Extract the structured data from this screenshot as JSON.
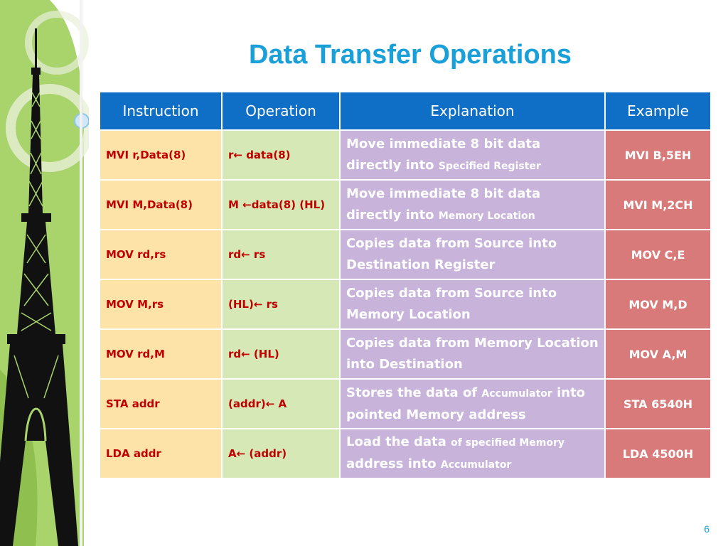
{
  "slide": {
    "title": "Data Transfer Operations",
    "page_number": "6"
  },
  "table": {
    "headers": [
      "Instruction",
      "Operation",
      "Explanation",
      "Example"
    ],
    "rows": [
      {
        "instruction": "MVI r,Data(8)",
        "operation": "r← data(8)",
        "explanation_main": "Move immediate 8 bit data directly into ",
        "explanation_small": "Specified Register",
        "explanation_tail": "",
        "example": "MVI B,5EH"
      },
      {
        "instruction": "MVI M,Data(8)",
        "operation": "M ←data(8) (HL)",
        "explanation_main": "Move immediate 8 bit data directly into ",
        "explanation_small": "Memory Location",
        "explanation_tail": "",
        "example": "MVI M,2CH"
      },
      {
        "instruction": "MOV rd,rs",
        "operation": "rd← rs",
        "explanation_main": "Copies data from Source into Destination Register",
        "explanation_small": "",
        "explanation_tail": "",
        "example": "MOV C,E"
      },
      {
        "instruction": "MOV M,rs",
        "operation": "(HL)← rs",
        "explanation_main": "Copies data from Source into Memory Location",
        "explanation_small": "",
        "explanation_tail": "",
        "example": "MOV M,D"
      },
      {
        "instruction": "MOV rd,M",
        "operation": "rd← (HL)",
        "explanation_main": "Copies data from Memory Location into Destination",
        "explanation_small": "",
        "explanation_tail": "",
        "example": "MOV A,M"
      },
      {
        "instruction": "STA addr",
        "operation": "(addr)← A",
        "explanation_main": "Stores the data of ",
        "explanation_small": "Accumulator",
        "explanation_tail": " into pointed Memory address",
        "example": "STA 6540H"
      },
      {
        "instruction": "LDA addr",
        "operation": "A← (addr)",
        "explanation_main": "Load the data ",
        "explanation_small": "of specified Memory",
        "explanation_tail": " address into ",
        "explanation_small2": "Accumulator",
        "example": "LDA 4500H"
      }
    ]
  },
  "colors": {
    "title": "#1aa0d8",
    "header_bg": "#0f6fc6",
    "instruction_bg": "#fde3a7",
    "operation_bg": "#d5e8b5",
    "explanation_bg": "#c8b3db",
    "example_bg": "#d97a7a",
    "cell_text_red": "#c00000"
  },
  "icons": {
    "decoration": "eiffel-tower-icon"
  }
}
